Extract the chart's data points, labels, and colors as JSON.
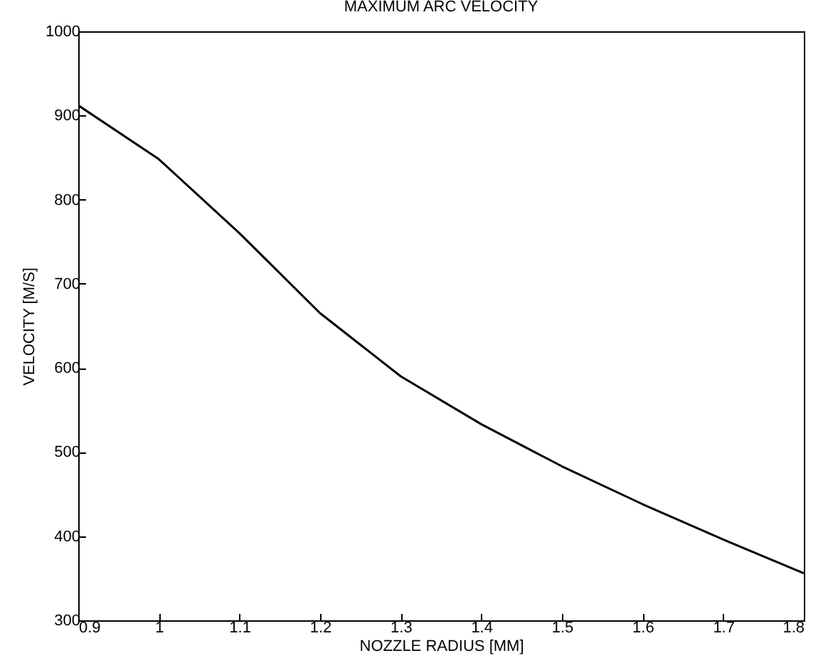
{
  "chart_data": {
    "type": "line",
    "title": "MAXIMUM ARC VELOCITY",
    "xlabel": "NOZZLE RADIUS [MM]",
    "ylabel": "VELOCITY [M/S]",
    "x": [
      0.9,
      1.0,
      1.1,
      1.2,
      1.3,
      1.4,
      1.5,
      1.6,
      1.7,
      1.8
    ],
    "series": [
      {
        "color": "#000000",
        "values": [
          912,
          848,
          760,
          665,
          590,
          533,
          483,
          438,
          396,
          356
        ]
      }
    ],
    "xlim": [
      0.9,
      1.8
    ],
    "xticks": [
      0.9,
      1,
      1.1,
      1.2,
      1.3,
      1.4,
      1.5,
      1.6,
      1.7,
      1.8
    ],
    "ylim": [
      300,
      1000
    ],
    "yticks": [
      300,
      400,
      500,
      600,
      700,
      800,
      900,
      1000
    ],
    "grid": false,
    "marker": "none",
    "line_style": "solid"
  }
}
